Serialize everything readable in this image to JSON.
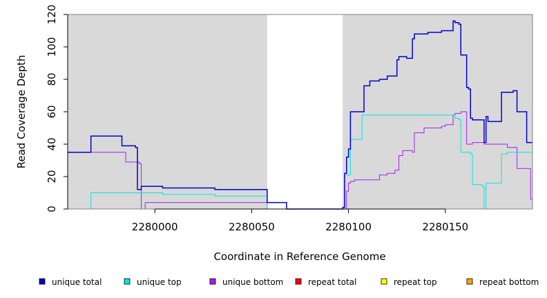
{
  "chart_data": {
    "type": "line",
    "title": "",
    "xlabel": "Coordinate in Reference Genome",
    "ylabel": "Read Coverage Depth",
    "xlim": [
      2279955,
      2280195
    ],
    "ylim": [
      0,
      120
    ],
    "xticks": [
      2280000,
      2280050,
      2280100,
      2280150
    ],
    "yticks": [
      0,
      20,
      40,
      60,
      80,
      100,
      120
    ],
    "shaded_regions": [
      {
        "start": 2279955,
        "end": 2280058
      },
      {
        "start": 2280097,
        "end": 2280195
      }
    ],
    "shade_color": "#d9d9d9",
    "legend_placement": "bottom",
    "series": [
      {
        "name": "unique total",
        "color": "#0000cc",
        "x": [
          2279955,
          2279967,
          2279983,
          2279990,
          2279991,
          2279993,
          2279995,
          2280004,
          2280019,
          2280031,
          2280058,
          2280068,
          2280097,
          2280098,
          2280099,
          2280100,
          2280101,
          2280108,
          2280111,
          2280116,
          2280120,
          2280125,
          2280126,
          2280130,
          2280133,
          2280134,
          2280141,
          2280148,
          2280154,
          2280155,
          2280157,
          2280158,
          2280161,
          2280162,
          2280163,
          2280164,
          2280170,
          2280171,
          2280172,
          2280179,
          2280185,
          2280187,
          2280192,
          2280195
        ],
        "y": [
          35,
          45,
          39,
          38,
          12,
          14,
          14,
          13,
          13,
          12,
          4,
          0,
          1,
          22,
          32,
          37,
          60,
          76,
          79,
          80,
          82,
          92,
          94,
          93,
          105,
          108,
          109,
          110,
          116,
          115,
          114,
          95,
          75,
          74,
          56,
          55,
          41,
          57,
          54,
          72,
          73,
          60,
          41,
          41
        ]
      },
      {
        "name": "unique top",
        "color": "#00e5e5",
        "x": [
          2279955,
          2279967,
          2279993,
          2280004,
          2280019,
          2280031,
          2280058,
          2280097,
          2280099,
          2280101,
          2280107,
          2280148,
          2280157,
          2280160,
          2280163,
          2280164,
          2280169,
          2280170,
          2280171,
          2280179,
          2280183,
          2280195
        ],
        "y": [
          0,
          10,
          10,
          10,
          9,
          8,
          0,
          0,
          21,
          43,
          58,
          58,
          55,
          35,
          34,
          15,
          14,
          0,
          16,
          34,
          35,
          35
        ],
        "step_points": [
          [
            2279955,
            0
          ],
          [
            2279967,
            10
          ],
          [
            2279993,
            10
          ],
          [
            2280004,
            9
          ],
          [
            2280031,
            8
          ],
          [
            2280058,
            0
          ],
          [
            2280097,
            0
          ],
          [
            2280098,
            21
          ],
          [
            2280101,
            43
          ],
          [
            2280107,
            58
          ],
          [
            2280154,
            58
          ],
          [
            2280155,
            56
          ],
          [
            2280157,
            55
          ],
          [
            2280158,
            35
          ],
          [
            2280163,
            34
          ],
          [
            2280164,
            15
          ],
          [
            2280169,
            14
          ],
          [
            2280170,
            0
          ],
          [
            2280171,
            16
          ],
          [
            2280179,
            34
          ],
          [
            2280182,
            35
          ],
          [
            2280195,
            35
          ]
        ]
      },
      {
        "name": "unique bottom",
        "color": "#a020f0",
        "x": [
          2279955,
          2279967,
          2279985,
          2279992,
          2279993,
          2279995,
          2280031,
          2280058,
          2280097,
          2280099,
          2280100,
          2280101,
          2280103,
          2280108,
          2280116,
          2280120,
          2280124,
          2280126,
          2280128,
          2280133,
          2280134,
          2280139,
          2280148,
          2280150,
          2280154,
          2280155,
          2280158,
          2280161,
          2280164,
          2280170,
          2280182,
          2280187,
          2280194,
          2280195
        ],
        "y": [
          35,
          35,
          29,
          28,
          0,
          4,
          4,
          0,
          0,
          11,
          16,
          17,
          18,
          18,
          21,
          22,
          24,
          33,
          36,
          35,
          47,
          50,
          51,
          52,
          58,
          59,
          60,
          40,
          41,
          40,
          38,
          25,
          6,
          6
        ]
      },
      {
        "name": "repeat total",
        "color": "#ff0000",
        "x": [
          2279955,
          2280195
        ],
        "y": [
          0,
          0
        ]
      },
      {
        "name": "repeat top",
        "color": "#ffff00",
        "x": [
          2279955,
          2280195
        ],
        "y": [
          0,
          0
        ]
      },
      {
        "name": "repeat bottom",
        "color": "#ffa500",
        "x": [
          2279955,
          2280195
        ],
        "y": [
          0,
          0
        ]
      }
    ]
  }
}
